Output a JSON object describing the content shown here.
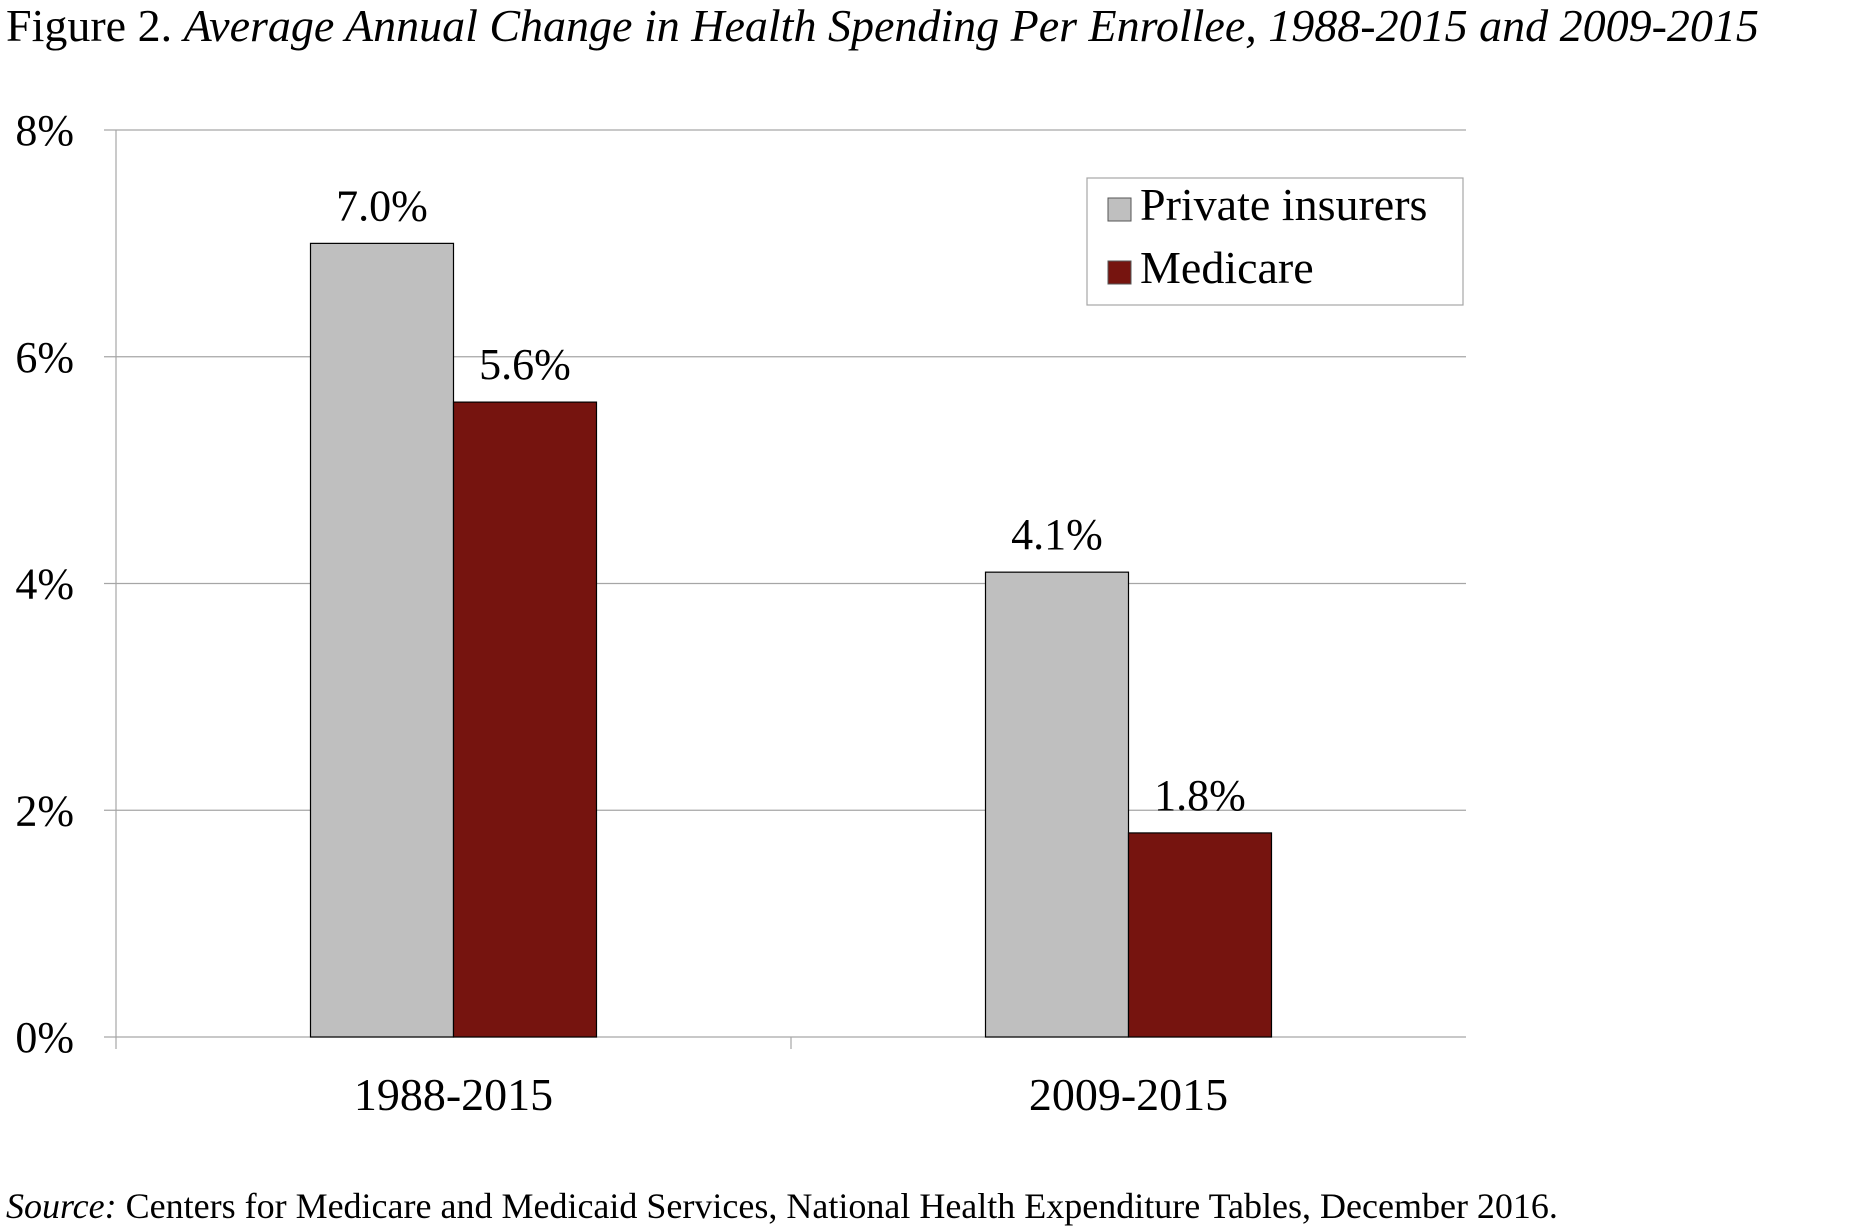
{
  "figure": {
    "label": "Figure 2.",
    "title": "Average Annual Change in Health Spending Per Enrollee, 1988-2015 and 2009-2015"
  },
  "source": {
    "label": "Source:",
    "text": "Centers for Medicare and Medicaid Services, National Health Expenditure Tables, December 2016."
  },
  "colors": {
    "private": "#bfbfbf",
    "medicare": "#76140f",
    "grid": "#a6a6a6"
  },
  "chart_data": {
    "type": "bar",
    "categories": [
      "1988-2015",
      "2009-2015"
    ],
    "series": [
      {
        "name": "Private insurers",
        "values": [
          7.0,
          4.1
        ],
        "labels": [
          "7.0%",
          "4.1%"
        ]
      },
      {
        "name": "Medicare",
        "values": [
          5.6,
          1.8
        ],
        "labels": [
          "5.6%",
          "1.8%"
        ]
      }
    ],
    "ylim": [
      0,
      8
    ],
    "yticks": [
      0,
      2,
      4,
      6,
      8
    ],
    "ytick_labels": [
      "0%",
      "2%",
      "4%",
      "6%",
      "8%"
    ],
    "grid": true,
    "legend_position": "top-right"
  }
}
